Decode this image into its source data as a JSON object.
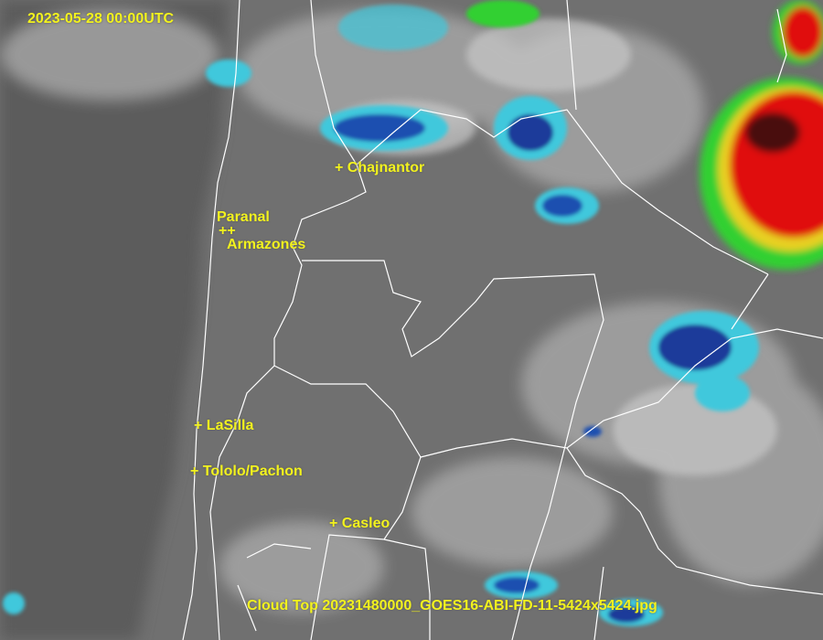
{
  "timestamp": "2023-05-28 00:00UTC",
  "caption": "Cloud Top 20231480000_GOES16-ABI-FD-11-5424x5424.jpg",
  "sites": [
    {
      "label": "+ Chajnantor"
    },
    {
      "label": "Paranal"
    },
    {
      "label": "++"
    },
    {
      "label": "Armazones"
    },
    {
      "label": "+ LaSilla"
    },
    {
      "label": "+ Tololo/Pachon"
    },
    {
      "label": "+ Casleo"
    }
  ],
  "colors": {
    "label": "#f2f21e",
    "borders": "#ffffff",
    "cold_cloud_blue": "#1a3fa0",
    "cyan": "#40d0e0",
    "green": "#30d030",
    "red": "#e01010"
  }
}
